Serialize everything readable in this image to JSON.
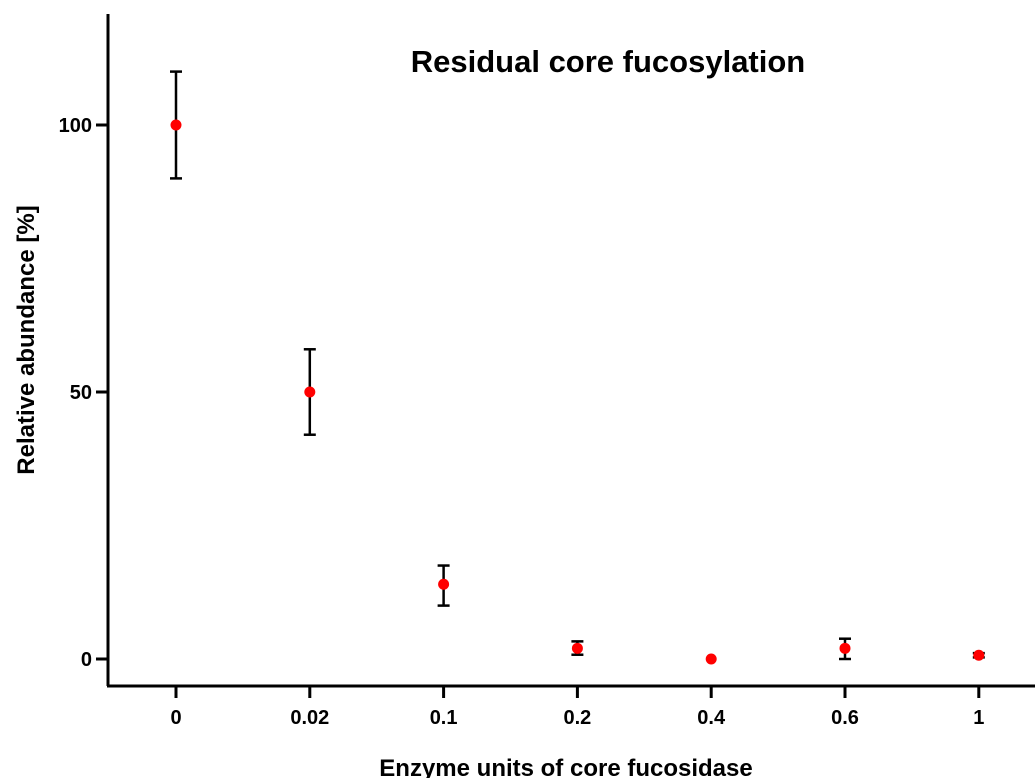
{
  "chart_data": {
    "type": "scatter",
    "title": "Residual core fucosylation",
    "xlabel": "Enzyme units of core fucosidase",
    "ylabel": "Relative abundance [%]",
    "categories": [
      "0",
      "0.02",
      "0.1",
      "0.2",
      "0.4",
      "0.6",
      "1"
    ],
    "values": [
      100,
      50,
      14,
      2,
      0,
      2,
      0.7
    ],
    "error_low": [
      90,
      42,
      10,
      0.8,
      0,
      0,
      0.3
    ],
    "error_high": [
      110,
      58,
      17.5,
      3.3,
      0,
      3.8,
      1.1
    ],
    "yticks": [
      0,
      50,
      100
    ],
    "ylim": [
      -5,
      120
    ],
    "grid": false,
    "marker_color": "#ff0000",
    "errorbar_color": "#000000"
  }
}
